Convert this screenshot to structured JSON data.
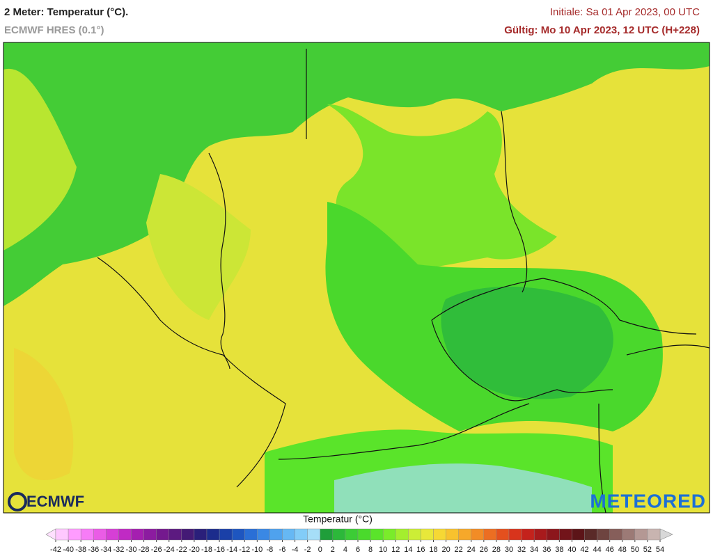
{
  "header": {
    "title": "2 Meter: Temperatur (°C).",
    "model": "ECMWF HRES (0.1°)",
    "init": "Initiale: Sa 01 Apr 2023, 00 UTC",
    "valid": "Gültig: Mo 10 Apr 2023, 12 UTC (H+228)"
  },
  "logos": {
    "left": "ECMWF",
    "right": "METEORED"
  },
  "colorbar": {
    "title": "Temperatur (°C)",
    "ticks": [
      -42,
      -40,
      -38,
      -36,
      -34,
      -32,
      -30,
      -28,
      -26,
      -24,
      -22,
      -20,
      -18,
      -16,
      -14,
      -12,
      -10,
      -8,
      -6,
      -4,
      -2,
      0,
      2,
      4,
      6,
      8,
      10,
      12,
      14,
      16,
      18,
      20,
      22,
      24,
      26,
      28,
      30,
      32,
      34,
      36,
      38,
      40,
      42,
      44,
      46,
      48,
      50,
      52,
      54
    ],
    "colors": [
      "#ffc8ff",
      "#ff9cff",
      "#f77cf7",
      "#ea5ce6",
      "#d63fd6",
      "#c02ac4",
      "#a51fb0",
      "#8c1ca0",
      "#74198e",
      "#5c1a80",
      "#441a75",
      "#2a1f7a",
      "#1c2c8c",
      "#1a40a8",
      "#1e56c0",
      "#2a6fd6",
      "#3a88e4",
      "#4fa2ee",
      "#66b8f4",
      "#82ccf8",
      "#a6def8",
      "#1f9e3a",
      "#2cb83a",
      "#3ccc36",
      "#4ada2c",
      "#5ae42a",
      "#7aec2a",
      "#a4ee2e",
      "#ccee36",
      "#e8e83a",
      "#f6d834",
      "#f8c22e",
      "#f6a82a",
      "#f28c26",
      "#ec6e22",
      "#e4501e",
      "#d8341c",
      "#c4221c",
      "#a81a1c",
      "#8c161c",
      "#72141a",
      "#5c1418",
      "#5a2a28",
      "#6e4440",
      "#865e5a",
      "#9c7a76",
      "#b49894",
      "#c8b4b0"
    ]
  }
}
